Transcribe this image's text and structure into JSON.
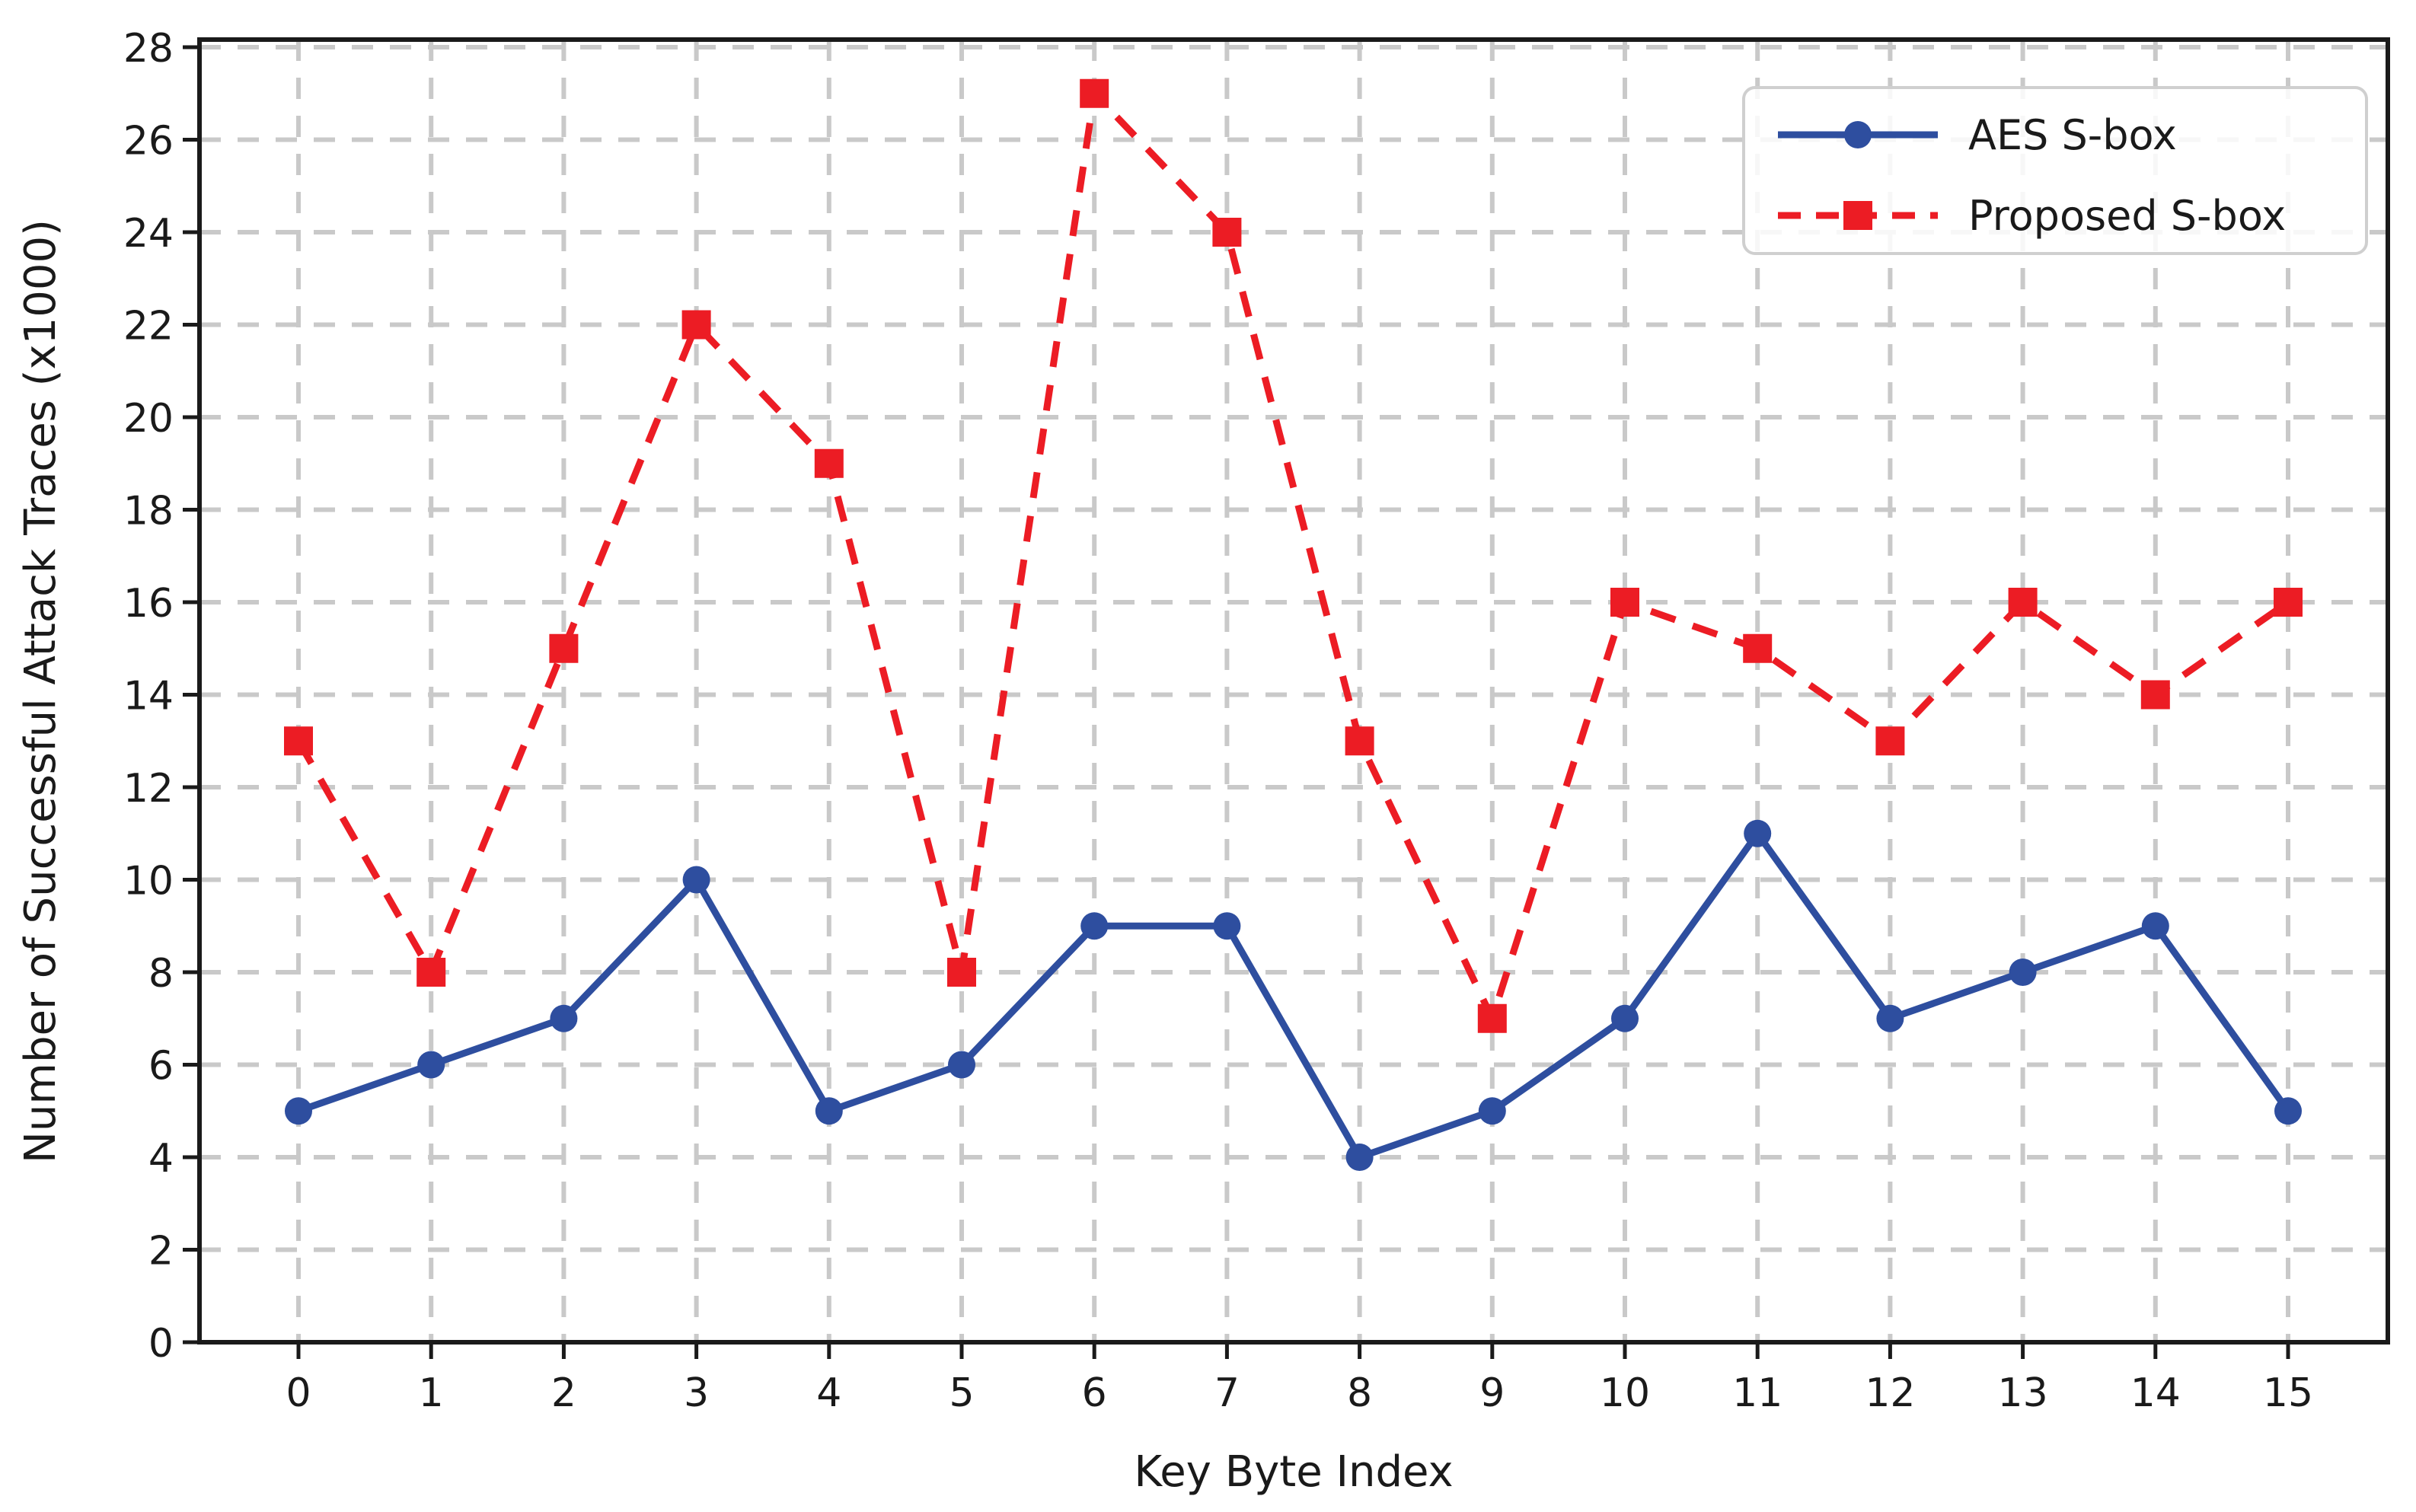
{
  "figure": {
    "background_color": "#ffffff",
    "spine_color": "#1a1a1a",
    "grid_color": "#c9c9c9",
    "text_color": "#1a1a1a"
  },
  "chart_data": {
    "type": "line",
    "title": "",
    "xlabel": "Key Byte Index",
    "ylabel": "Number of Successful Attack Traces (x1000)",
    "x": [
      0,
      1,
      2,
      3,
      4,
      5,
      6,
      7,
      8,
      9,
      10,
      11,
      12,
      13,
      14,
      15
    ],
    "xtick_labels": [
      "0",
      "1",
      "2",
      "3",
      "4",
      "5",
      "6",
      "7",
      "8",
      "9",
      "10",
      "11",
      "12",
      "13",
      "14",
      "15"
    ],
    "ytick_values": [
      0,
      2,
      4,
      6,
      8,
      10,
      12,
      14,
      16,
      18,
      20,
      22,
      24,
      26,
      28
    ],
    "ytick_labels": [
      "0",
      "2",
      "4",
      "6",
      "8",
      "10",
      "12",
      "14",
      "16",
      "18",
      "20",
      "22",
      "24",
      "26",
      "28"
    ],
    "xlim": [
      -0.75,
      15.75
    ],
    "ylim": [
      0,
      28
    ],
    "grid": "dashed",
    "legend_position": "upper right",
    "series": [
      {
        "name": "AES S-box",
        "color": "#2E4E9F",
        "marker": "circle",
        "line_style": "solid",
        "values": [
          5,
          6,
          7,
          10,
          5,
          6,
          9,
          9,
          4,
          5,
          7,
          11,
          7,
          8,
          9,
          5
        ]
      },
      {
        "name": "Proposed S-box",
        "color": "#EC1C24",
        "marker": "square",
        "line_style": "dashed",
        "values": [
          13,
          8,
          15,
          22,
          19,
          8,
          27,
          24,
          13,
          7,
          16,
          15,
          13,
          16,
          14,
          16
        ]
      }
    ]
  }
}
